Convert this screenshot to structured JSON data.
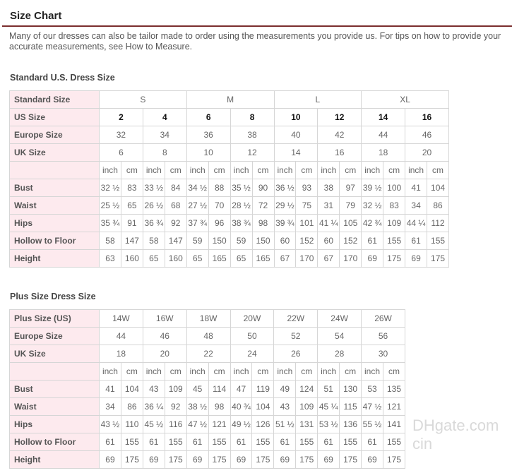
{
  "title": "Size Chart",
  "intro": "Many of our dresses can also be tailor made to order using the measurements you provide us. For tips on how to provide your accurate measurements, see How to Measure.",
  "standard": {
    "heading": "Standard U.S. Dress Size",
    "rows": [
      {
        "label": "Standard Size",
        "cells": [
          "S",
          "M",
          "L",
          "XL"
        ]
      },
      {
        "label": "US Size",
        "bold": true,
        "cells": [
          "2",
          "4",
          "6",
          "8",
          "10",
          "12",
          "14",
          "16"
        ]
      },
      {
        "label": "Europe Size",
        "cells": [
          "32",
          "34",
          "36",
          "38",
          "40",
          "42",
          "44",
          "46"
        ]
      },
      {
        "label": "UK Size",
        "cells": [
          "6",
          "8",
          "10",
          "12",
          "14",
          "16",
          "18",
          "20"
        ]
      },
      {
        "label": "",
        "cells": [
          "inch",
          "cm",
          "inch",
          "cm",
          "inch",
          "cm",
          "inch",
          "cm",
          "inch",
          "cm",
          "inch",
          "cm",
          "inch",
          "cm",
          "inch",
          "cm"
        ]
      },
      {
        "label": "Bust",
        "cells": [
          "32 ½",
          "83",
          "33 ½",
          "84",
          "34 ½",
          "88",
          "35 ½",
          "90",
          "36 ½",
          "93",
          "38",
          "97",
          "39 ½",
          "100",
          "41",
          "104"
        ]
      },
      {
        "label": "Waist",
        "cells": [
          "25 ½",
          "65",
          "26 ½",
          "68",
          "27 ½",
          "70",
          "28 ½",
          "72",
          "29 ½",
          "75",
          "31",
          "79",
          "32 ½",
          "83",
          "34",
          "86"
        ]
      },
      {
        "label": "Hips",
        "cells": [
          "35 ¾",
          "91",
          "36 ¾",
          "92",
          "37 ¾",
          "96",
          "38 ¾",
          "98",
          "39 ¾",
          "101",
          "41 ¼",
          "105",
          "42 ¾",
          "109",
          "44 ¼",
          "112"
        ]
      },
      {
        "label": "Hollow to Floor",
        "cells": [
          "58",
          "147",
          "58",
          "147",
          "59",
          "150",
          "59",
          "150",
          "60",
          "152",
          "60",
          "152",
          "61",
          "155",
          "61",
          "155"
        ]
      },
      {
        "label": "Height",
        "cells": [
          "63",
          "160",
          "65",
          "160",
          "65",
          "165",
          "65",
          "165",
          "67",
          "170",
          "67",
          "170",
          "69",
          "175",
          "69",
          "175"
        ]
      }
    ]
  },
  "plus": {
    "heading": "Plus Size Dress Size",
    "rows": [
      {
        "label": "Plus Size (US)",
        "cells": [
          "14W",
          "16W",
          "18W",
          "20W",
          "22W",
          "24W",
          "26W"
        ]
      },
      {
        "label": "Europe Size",
        "cells": [
          "44",
          "46",
          "48",
          "50",
          "52",
          "54",
          "56"
        ]
      },
      {
        "label": "UK Size",
        "cells": [
          "18",
          "20",
          "22",
          "24",
          "26",
          "28",
          "30"
        ]
      },
      {
        "label": "",
        "cells": [
          "inch",
          "cm",
          "inch",
          "cm",
          "inch",
          "cm",
          "inch",
          "cm",
          "inch",
          "cm",
          "inch",
          "cm",
          "inch",
          "cm"
        ]
      },
      {
        "label": "Bust",
        "cells": [
          "41",
          "104",
          "43",
          "109",
          "45",
          "114",
          "47",
          "119",
          "49",
          "124",
          "51",
          "130",
          "53",
          "135"
        ]
      },
      {
        "label": "Waist",
        "cells": [
          "34",
          "86",
          "36 ¼",
          "92",
          "38 ½",
          "98",
          "40 ¾",
          "104",
          "43",
          "109",
          "45 ¼",
          "115",
          "47 ½",
          "121"
        ]
      },
      {
        "label": "Hips",
        "cells": [
          "43 ½",
          "110",
          "45 ½",
          "116",
          "47 ½",
          "121",
          "49 ½",
          "126",
          "51 ½",
          "131",
          "53 ½",
          "136",
          "55 ½",
          "141"
        ]
      },
      {
        "label": "Hollow to Floor",
        "cells": [
          "61",
          "155",
          "61",
          "155",
          "61",
          "155",
          "61",
          "155",
          "61",
          "155",
          "61",
          "155",
          "61",
          "155"
        ]
      },
      {
        "label": "Height",
        "cells": [
          "69",
          "175",
          "69",
          "175",
          "69",
          "175",
          "69",
          "175",
          "69",
          "175",
          "69",
          "175",
          "69",
          "175"
        ]
      }
    ]
  },
  "watermark": "DHgate.com cin"
}
